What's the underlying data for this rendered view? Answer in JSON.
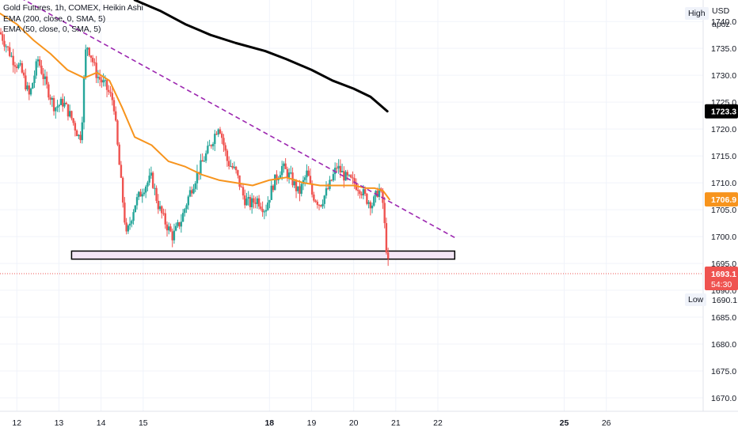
{
  "legend": {
    "line1": "Gold Futures, 1h, COMEX, Heikin Ashi",
    "line2": "EMA (200, close, 0, SMA, 5)",
    "line3": "EMA (50, close, 0, SMA, 5)"
  },
  "price_axis": {
    "currency": "USD",
    "unit": "apoz",
    "high_label": "High",
    "low_label": "Low",
    "low_value": "1690.1"
  },
  "colors": {
    "up": "#26a69a",
    "down": "#ef5350",
    "ema200": "#000000",
    "ema50": "#f7941d",
    "trendline": "#9c27b0",
    "zone_fill": "#f3e5f5",
    "current_price": "#ef5350"
  },
  "chart_data": {
    "type": "candlestick",
    "title": "Gold Futures, 1h, COMEX, Heikin Ashi",
    "ylim": [
      1667.5,
      1744
    ],
    "yticks": [
      1670,
      1675,
      1680,
      1685,
      1690,
      1695,
      1700,
      1705,
      1710,
      1715,
      1720,
      1725,
      1730,
      1735,
      1740
    ],
    "x_ticks": [
      {
        "label": "12",
        "x": 12
      },
      {
        "label": "13",
        "x": 13
      },
      {
        "label": "14",
        "x": 14
      },
      {
        "label": "15",
        "x": 15
      },
      {
        "label": "18",
        "x": 18
      },
      {
        "label": "19",
        "x": 19
      },
      {
        "label": "20",
        "x": 20
      },
      {
        "label": "21",
        "x": 21
      },
      {
        "label": "22",
        "x": 22
      },
      {
        "label": "25",
        "x": 25
      },
      {
        "label": "26",
        "x": 26
      }
    ],
    "xlim": [
      11.6,
      28.3
    ],
    "ema200": {
      "name": "EMA (200, close, 0, SMA, 5)",
      "x": [
        14.8,
        15.4,
        16.0,
        16.6,
        17.2,
        17.9,
        18.4,
        19.0,
        19.5,
        20.0,
        20.4,
        20.8
      ],
      "y": [
        1744,
        1742,
        1739.5,
        1737.5,
        1736,
        1734.5,
        1733,
        1731,
        1729,
        1727.5,
        1726,
        1723.3
      ]
    },
    "ema50": {
      "name": "EMA (50, close, 0, SMA, 5)",
      "x": [
        11.6,
        12.0,
        12.4,
        12.8,
        13.2,
        13.6,
        13.9,
        14.2,
        14.5,
        14.8,
        15.2,
        15.6,
        16.0,
        16.4,
        16.8,
        17.2,
        17.6,
        18.0,
        18.4,
        18.8,
        19.2,
        19.6,
        20.0,
        20.3,
        20.5,
        20.7,
        20.85
      ],
      "y": [
        1741.5,
        1739.5,
        1736.5,
        1734,
        1731,
        1729.5,
        1730.5,
        1729,
        1724,
        1718.5,
        1717,
        1714,
        1713,
        1711.5,
        1710.5,
        1710,
        1709.5,
        1710.5,
        1711,
        1710,
        1709.5,
        1709.5,
        1709.5,
        1709,
        1709,
        1708.5,
        1706.9
      ]
    },
    "trendline": {
      "x": [
        11.6,
        22.4
      ],
      "y": [
        1746.5,
        1699.8
      ]
    },
    "support_zone": {
      "x1": 13.3,
      "x2": 22.4,
      "y1": 1695.8,
      "y2": 1697.3
    },
    "last_price": 1693.1,
    "countdown": "54:30",
    "price_labels": [
      {
        "label": "1723.3",
        "value": 1723.3,
        "bg": "#000000",
        "fg": "#ffffff"
      },
      {
        "label": "1706.9",
        "value": 1706.9,
        "bg": "#f7941d",
        "fg": "#ffffff"
      },
      {
        "label": "1693.1",
        "value": 1693.1,
        "bg": "#ef5350",
        "fg": "#ffffff"
      }
    ],
    "candle_anchors": [
      [
        11.6,
        1738
      ],
      [
        11.9,
        1733
      ],
      [
        12.1,
        1731
      ],
      [
        12.3,
        1726
      ],
      [
        12.5,
        1733
      ],
      [
        12.7,
        1728
      ],
      [
        12.9,
        1724
      ],
      [
        13.1,
        1725
      ],
      [
        13.3,
        1722
      ],
      [
        13.5,
        1718
      ],
      [
        13.55,
        1722
      ],
      [
        13.6,
        1730
      ],
      [
        13.65,
        1736
      ],
      [
        13.75,
        1734
      ],
      [
        13.9,
        1730
      ],
      [
        14.1,
        1728
      ],
      [
        14.3,
        1725
      ],
      [
        14.4,
        1716
      ],
      [
        14.5,
        1708
      ],
      [
        14.6,
        1700
      ],
      [
        14.8,
        1706
      ],
      [
        15.0,
        1709
      ],
      [
        15.2,
        1711
      ],
      [
        15.35,
        1706
      ],
      [
        15.5,
        1703
      ],
      [
        15.7,
        1700
      ],
      [
        15.9,
        1703
      ],
      [
        16.1,
        1708
      ],
      [
        16.3,
        1712
      ],
      [
        16.6,
        1717
      ],
      [
        16.8,
        1721
      ],
      [
        17.0,
        1714
      ],
      [
        17.2,
        1712
      ],
      [
        17.4,
        1707
      ],
      [
        17.55,
        1706
      ],
      [
        17.7,
        1707
      ],
      [
        17.9,
        1705
      ],
      [
        18.1,
        1710
      ],
      [
        18.3,
        1713
      ],
      [
        18.5,
        1711
      ],
      [
        18.7,
        1708
      ],
      [
        18.9,
        1712
      ],
      [
        19.0,
        1708
      ],
      [
        19.2,
        1706
      ],
      [
        19.4,
        1709
      ],
      [
        19.6,
        1713
      ],
      [
        19.8,
        1711
      ],
      [
        20.0,
        1710
      ],
      [
        20.15,
        1709
      ],
      [
        20.3,
        1707
      ],
      [
        20.45,
        1706
      ],
      [
        20.6,
        1709
      ],
      [
        20.7,
        1706
      ],
      [
        20.75,
        1700
      ],
      [
        20.8,
        1696
      ],
      [
        20.85,
        1693.1
      ]
    ]
  }
}
